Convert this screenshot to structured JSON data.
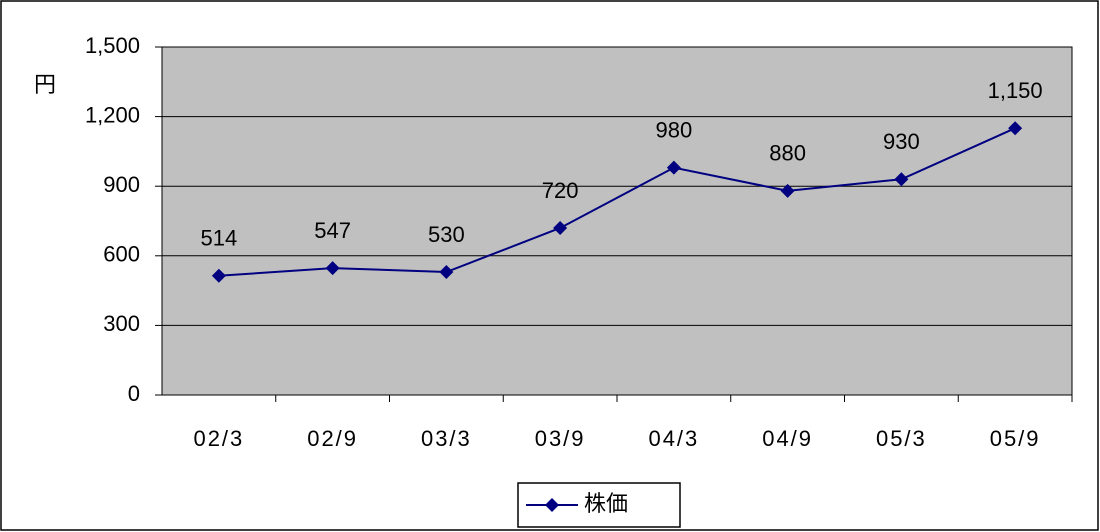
{
  "chart_data": {
    "type": "line",
    "y_label": "円",
    "categories": [
      "02/3",
      "02/9",
      "03/3",
      "03/9",
      "04/3",
      "04/9",
      "05/3",
      "05/9"
    ],
    "series": [
      {
        "name": "株価",
        "color": "#000080",
        "values": [
          514,
          547,
          530,
          720,
          980,
          880,
          930,
          1150
        ],
        "value_labels": [
          "514",
          "547",
          "530",
          "720",
          "980",
          "880",
          "930",
          "1,150"
        ]
      }
    ],
    "ylim": [
      0,
      1500
    ],
    "yticks": [
      0,
      300,
      600,
      900,
      {
        "value": 1200,
        "label": "1,200"
      },
      {
        "value": 1500,
        "label": "1,500"
      }
    ],
    "grid": true,
    "plot_background": "#c0c0c0",
    "legend": "bottom"
  }
}
